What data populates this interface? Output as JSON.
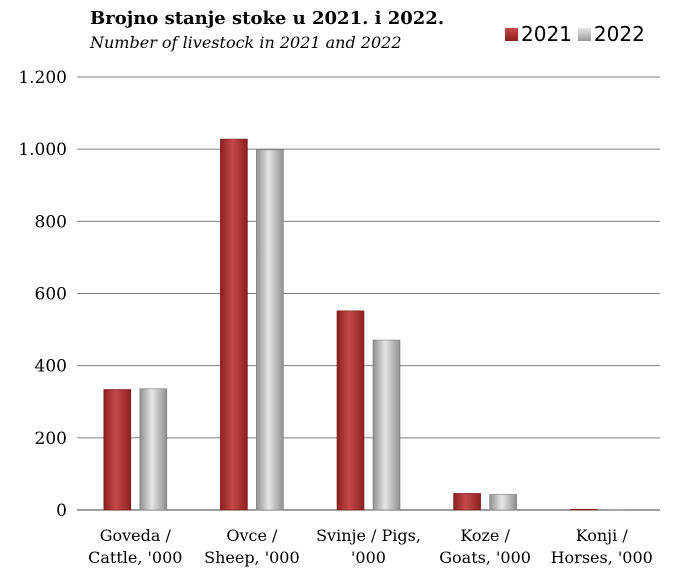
{
  "title": "Brojno stanje stoke u 2021. i 2022.",
  "subtitle": "Number of livestock in 2021 and 2022",
  "legend": {
    "label_2021": "2021",
    "label_2022": "2022"
  },
  "colors": {
    "series_2021": "#a83232",
    "series_2022": "#bdbdbd",
    "grid": "#7f7f7f"
  },
  "chart_data": {
    "type": "bar",
    "title": "Brojno stanje stoke u 2021. i 2022.",
    "subtitle": "Number of livestock in 2021 and 2022",
    "categories": [
      [
        "Goveda /",
        "Cattle, '000"
      ],
      [
        "Ovce /",
        "Sheep, '000"
      ],
      [
        "Svinje / Pigs,",
        "'000"
      ],
      [
        "Koze /",
        "Goats, '000"
      ],
      [
        "Konji /",
        "Horses, '000"
      ]
    ],
    "series": [
      {
        "name": "2021",
        "values": [
          334,
          1028,
          552,
          46,
          2
        ]
      },
      {
        "name": "2022",
        "values": [
          336,
          998,
          471,
          43,
          1
        ]
      }
    ],
    "ylim": [
      0,
      1200
    ],
    "yticks": [
      0,
      200,
      400,
      600,
      800,
      1000,
      1200
    ],
    "ytick_labels": [
      "0",
      "200",
      "400",
      "600",
      "800",
      "1.000",
      "1.200"
    ],
    "grid": true,
    "legend_position": "top-right"
  }
}
